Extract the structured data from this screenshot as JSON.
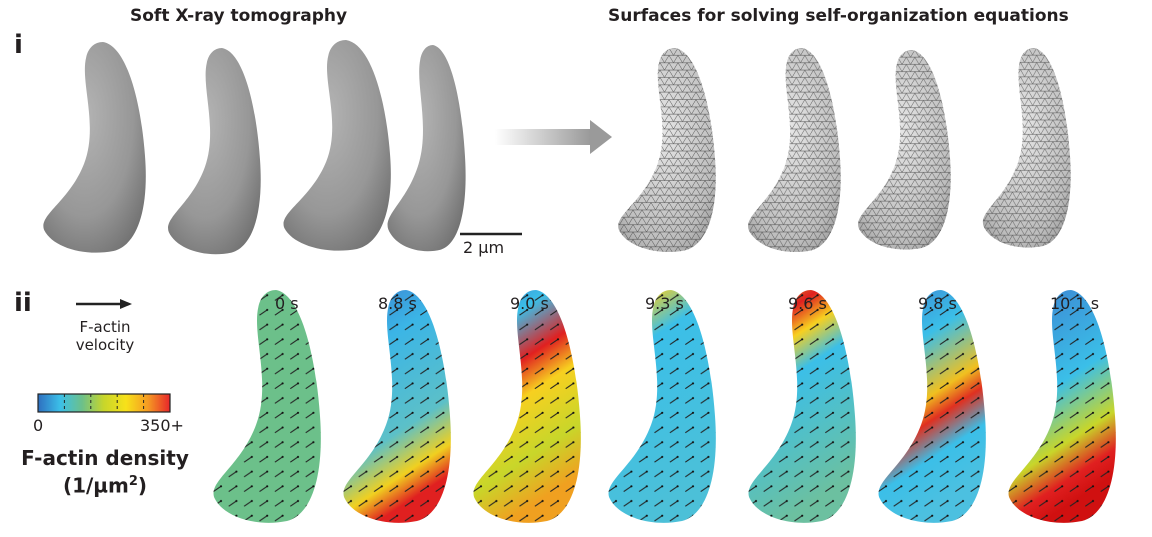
{
  "panel_i": {
    "label": "i",
    "left_heading": "Soft X-ray tomography",
    "right_heading": "Surfaces for solving self-organization equations",
    "scale_bar_label": "2 µm"
  },
  "panel_ii": {
    "label": "ii",
    "velocity_legend": {
      "line1": "F-actin",
      "line2": "velocity",
      "icon": "arrow-right-icon"
    },
    "colorbar": {
      "min_label": "0",
      "max_label": "350+",
      "colors": [
        "#2e6fc0",
        "#3bbfe8",
        "#6cc08a",
        "#c8d62a",
        "#f7e11a",
        "#f59a23",
        "#e8262a"
      ]
    },
    "density_title": "F-actin density",
    "density_unit_prefix": "(1/µm",
    "density_unit_sup": "2",
    "density_unit_suffix": ")",
    "times": [
      "0 s",
      "8.8 s",
      "9.0 s",
      "9.3 s",
      "9.6 s",
      "9.8 s",
      "10.1 s"
    ]
  }
}
